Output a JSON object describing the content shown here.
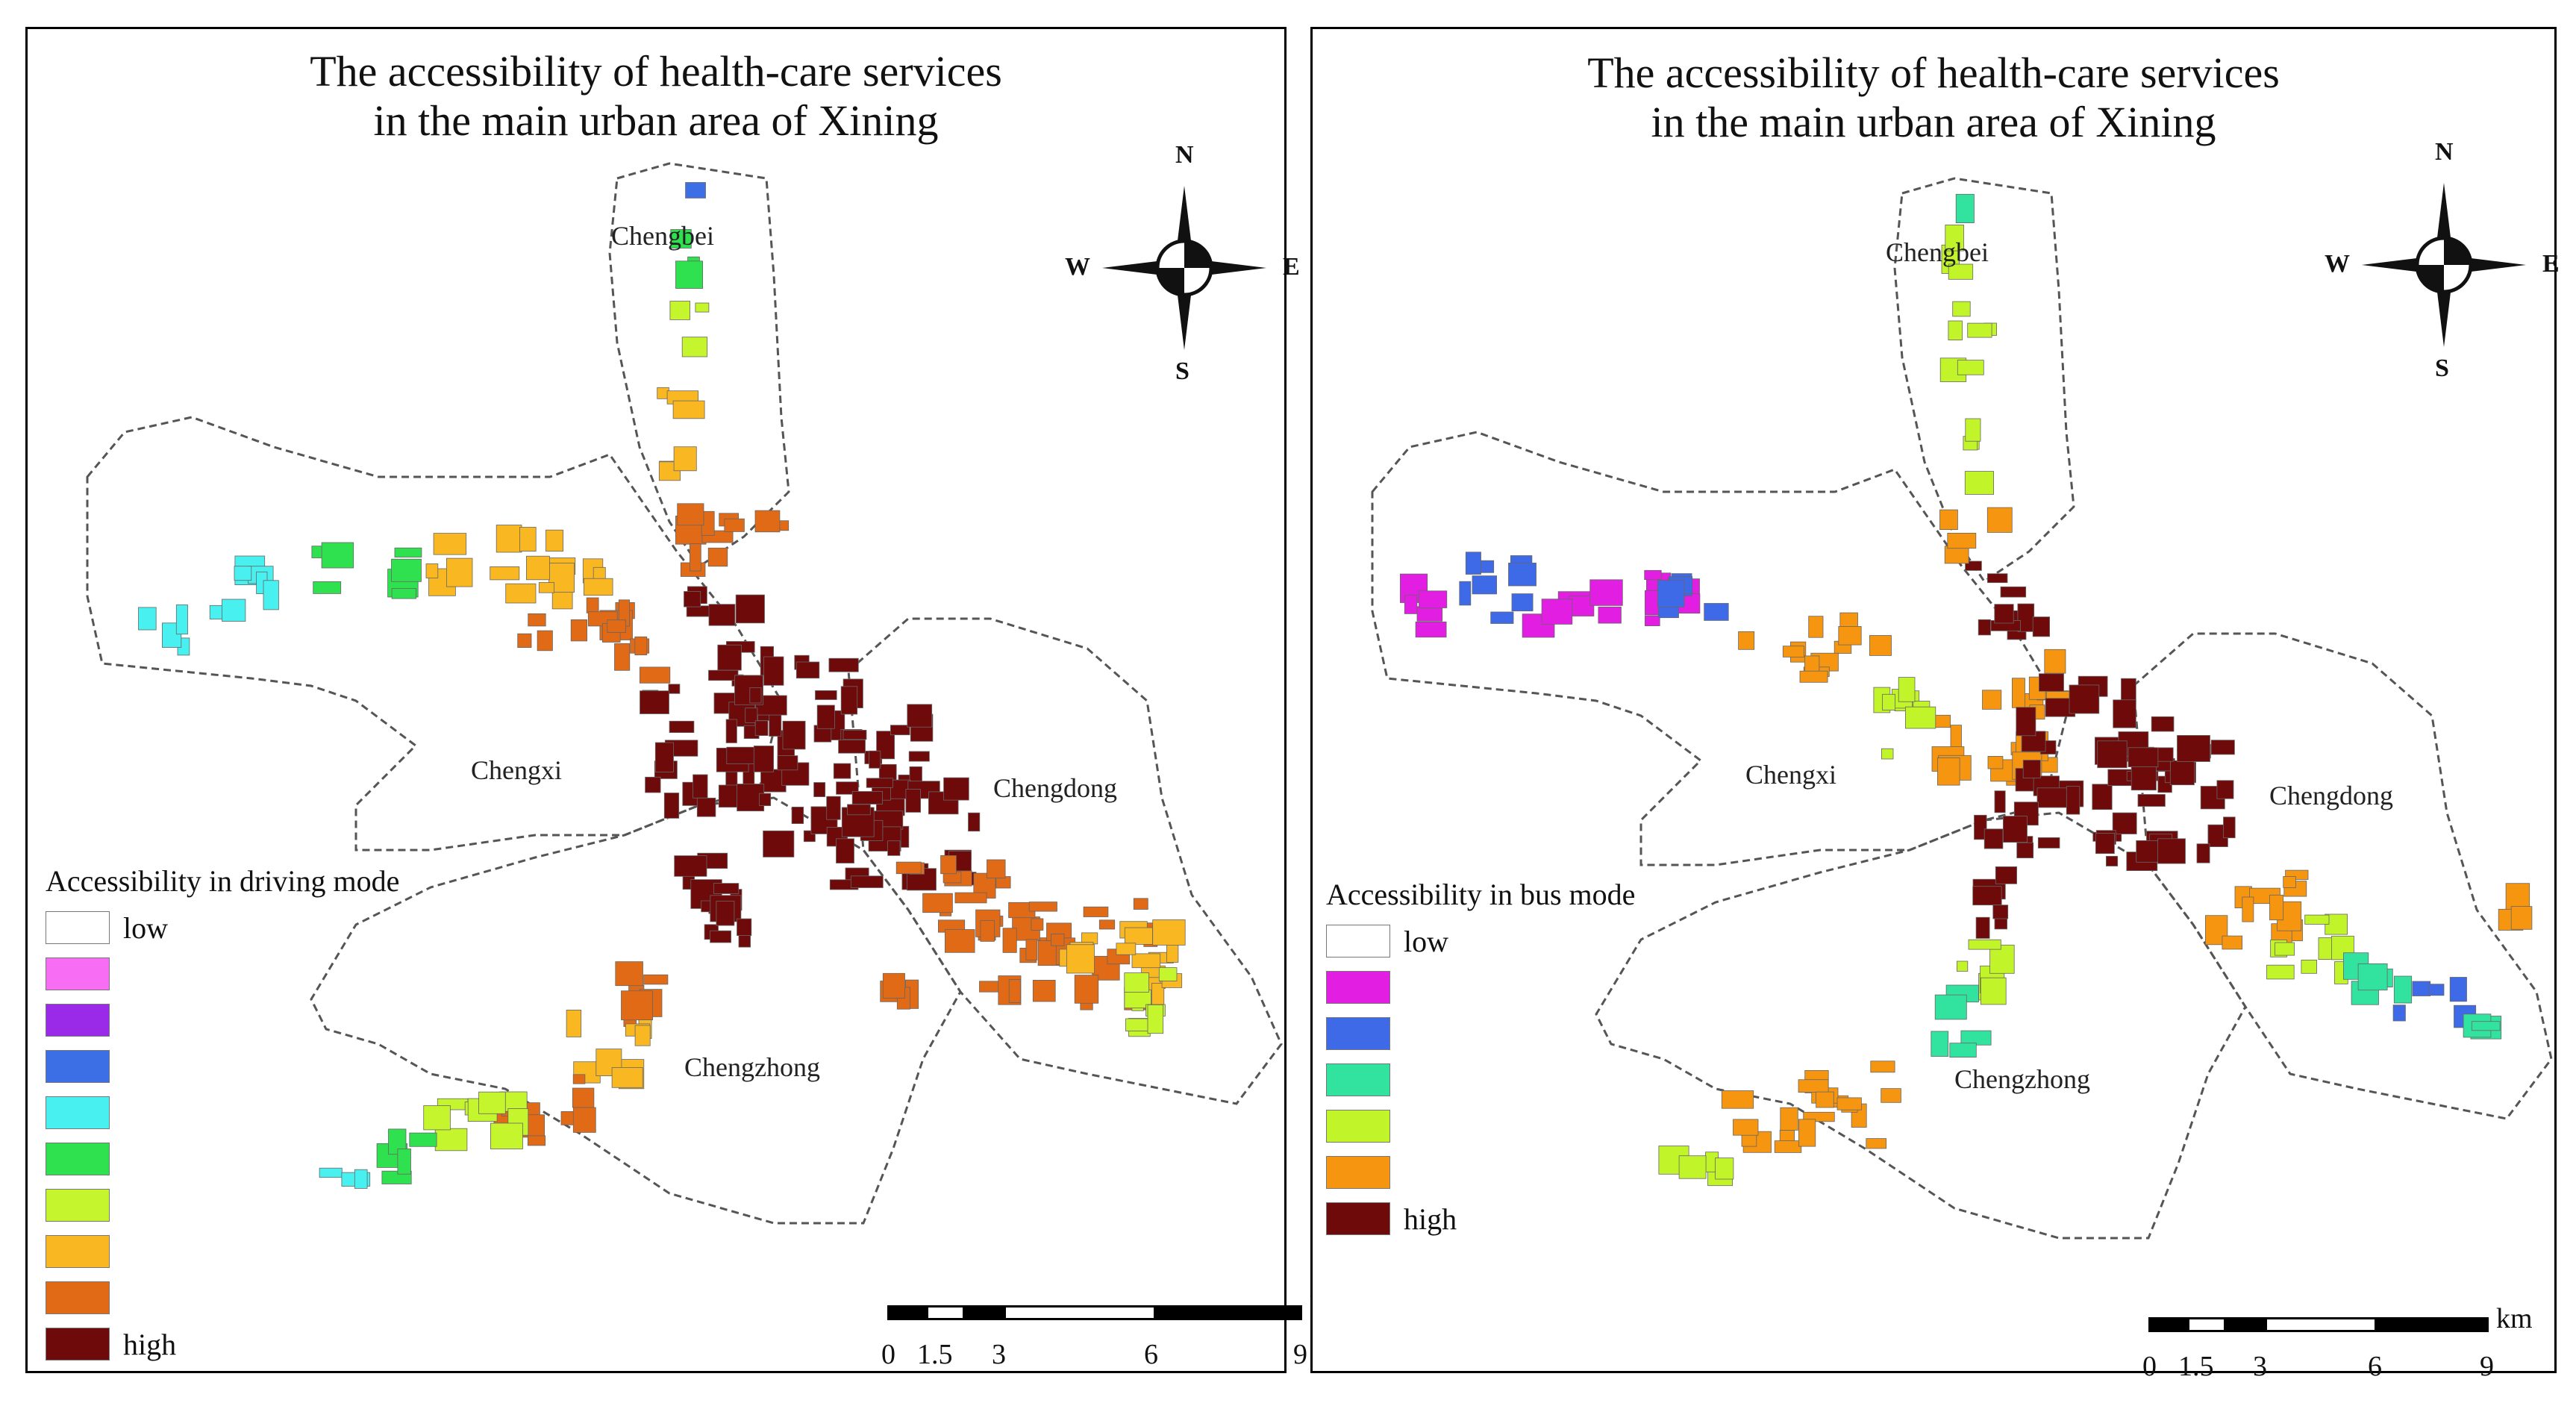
{
  "panels": [
    {
      "title_line1": "The accessibility of health-care services",
      "title_line2": "in the main urban area of Xining",
      "legend": {
        "title": "Accessibility in driving mode",
        "low_label": "low",
        "high_label": "high",
        "colors": [
          "#ffffff",
          "#f76ef4",
          "#9a2ae8",
          "#3c6fe6",
          "#48f0ef",
          "#2fe04f",
          "#c4f52d",
          "#f9b822",
          "#e06a15",
          "#6e0a0a"
        ]
      }
    },
    {
      "title_line1": "The accessibility of health-care services",
      "title_line2": "in the main urban area of Xining",
      "legend": {
        "title": "Accessibility in bus mode",
        "low_label": "low",
        "high_label": "high",
        "colors": [
          "#ffffff",
          "#e21ee2",
          "#3e6ae8",
          "#32e3a0",
          "#c2f529",
          "#f6950f",
          "#6e0a0a"
        ]
      }
    }
  ],
  "districts": {
    "north": "Chengbei",
    "west": "Chengxi",
    "east": "Chengdong",
    "south": "Chengzhong"
  },
  "compass": {
    "n": "N",
    "s": "S",
    "e": "E",
    "w": "W"
  },
  "scale": {
    "unit": "km",
    "ticks": [
      "0",
      "1.5",
      "3",
      "6",
      "9"
    ]
  }
}
